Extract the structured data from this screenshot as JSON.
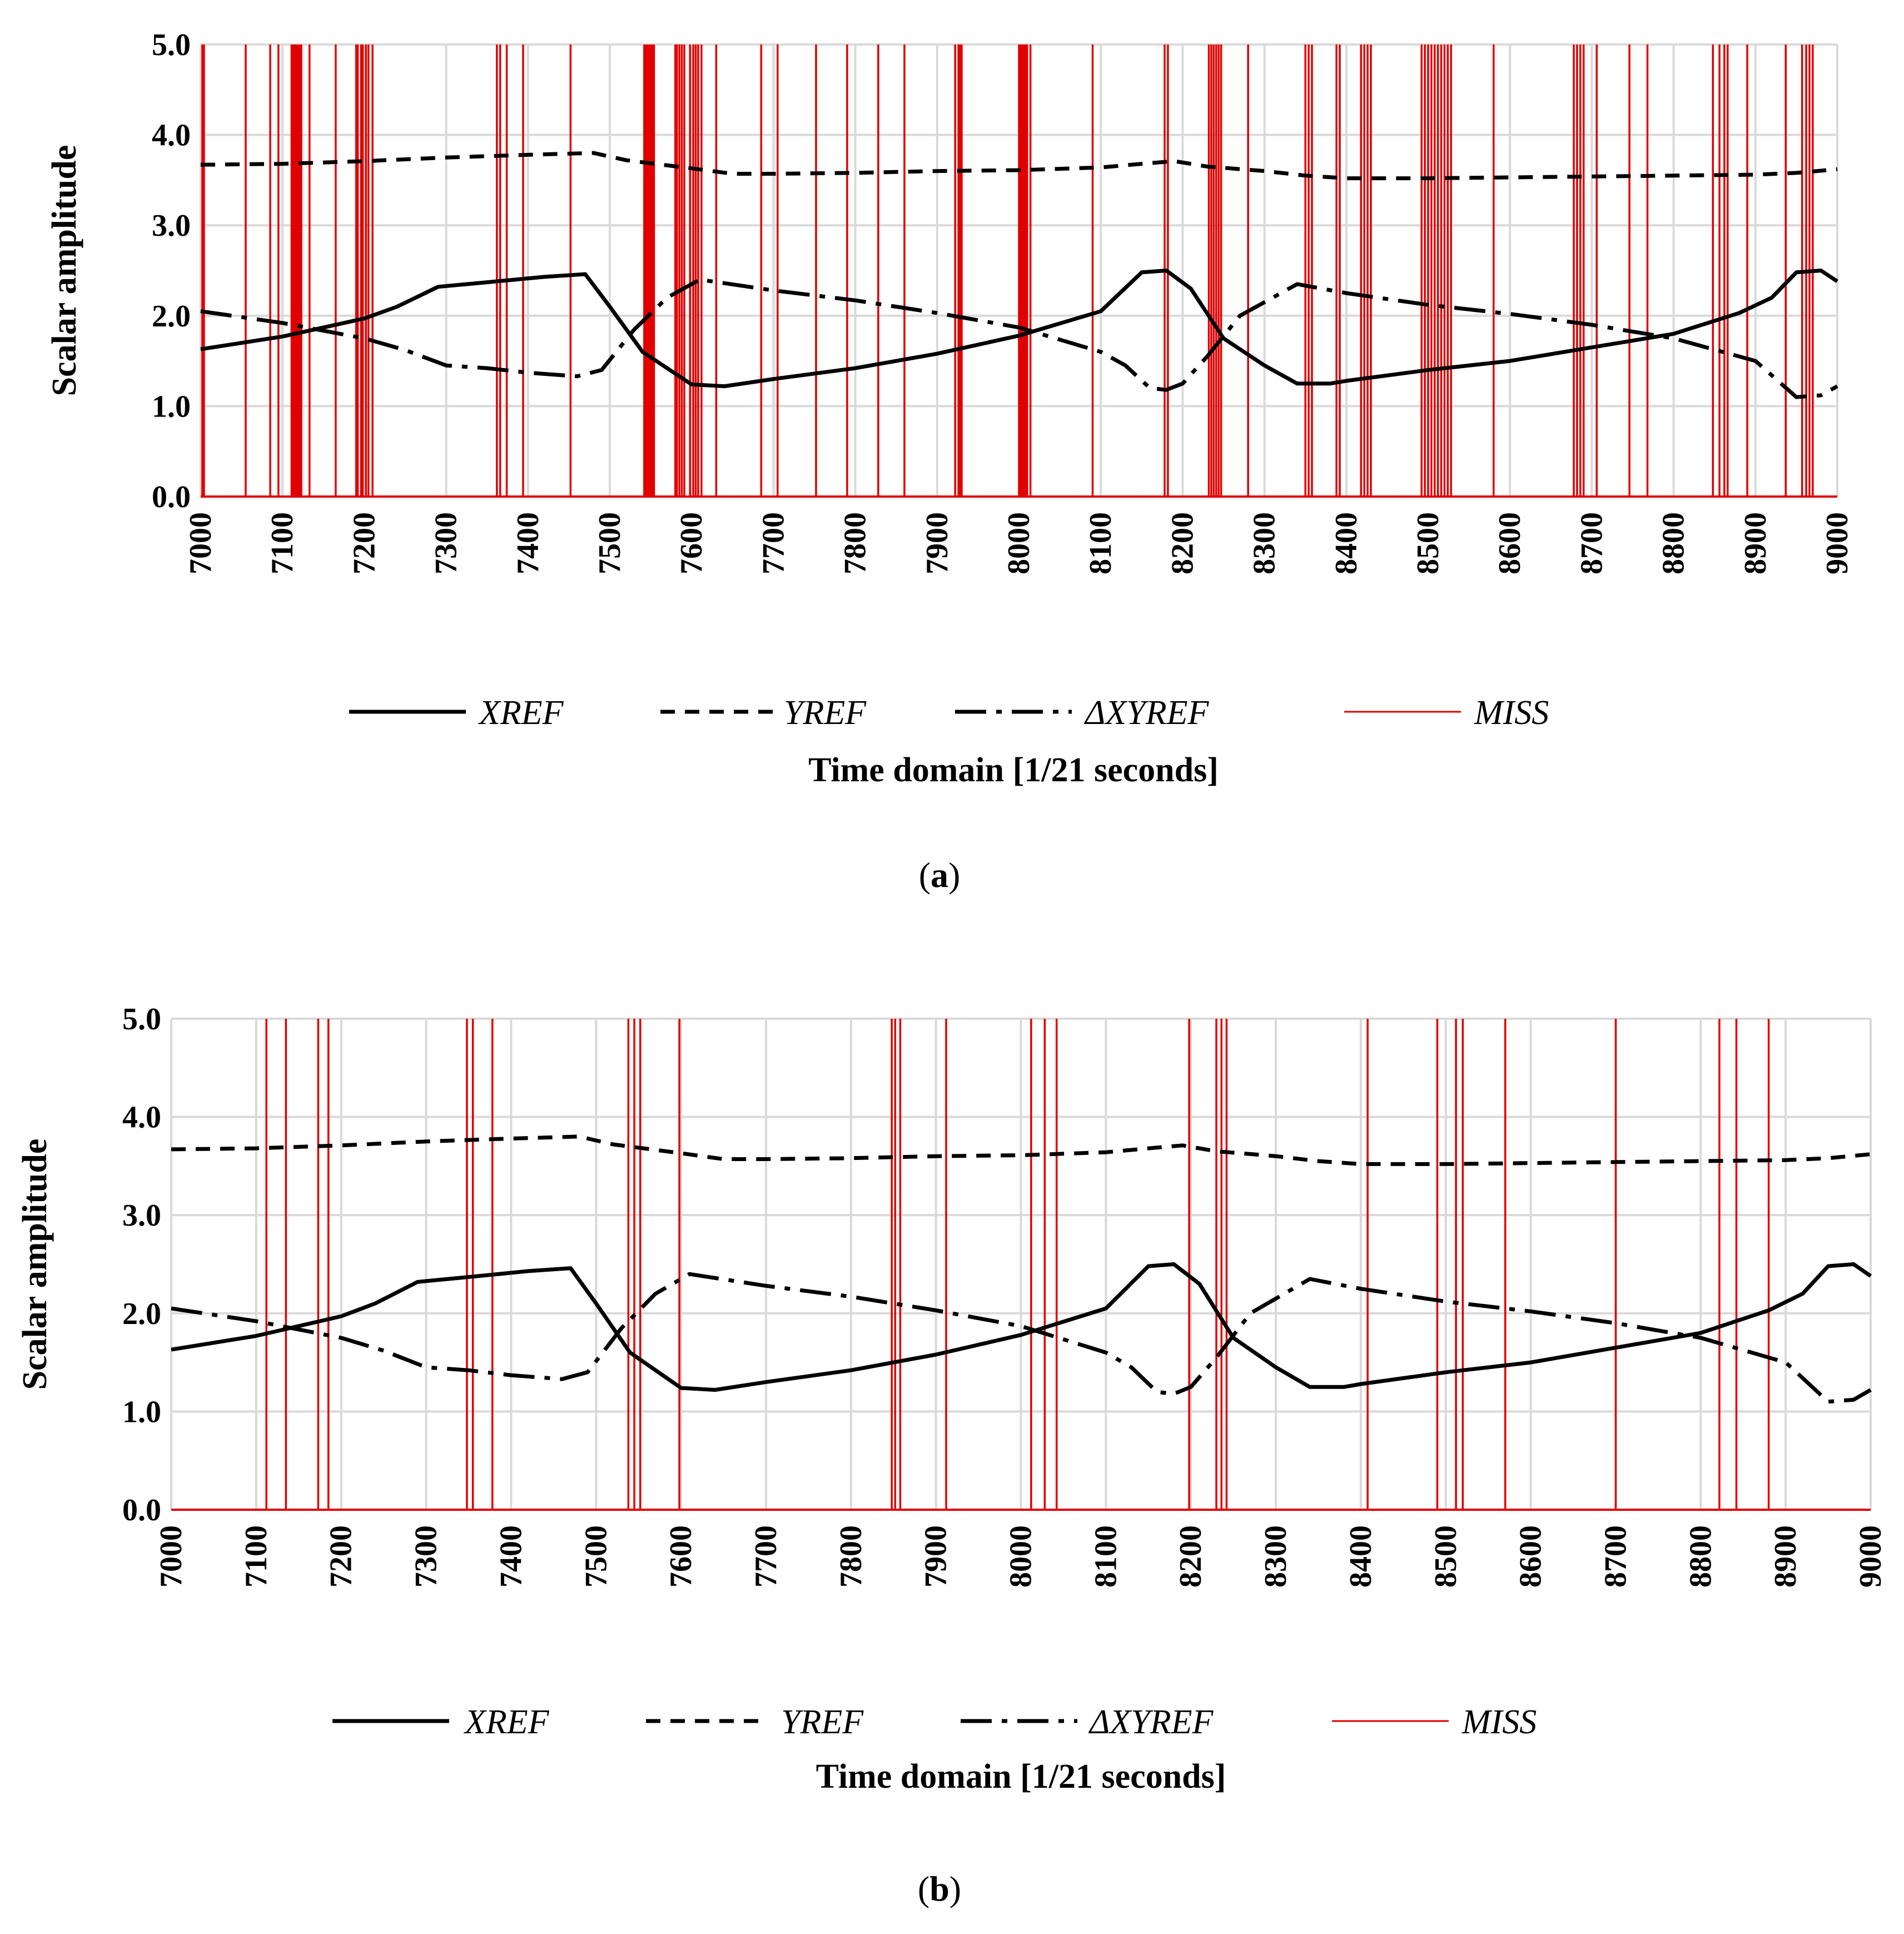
{
  "figure": {
    "panel_labels": [
      {
        "open": "(",
        "letter": "a",
        "close": ")"
      },
      {
        "open": "(",
        "letter": "b",
        "close": ")"
      }
    ]
  },
  "colors": {
    "xref": "#000000",
    "yref": "#000000",
    "dxyref": "#000000",
    "miss": "#e00000",
    "grid": "#d9d9d9"
  },
  "chart_data": [
    {
      "type": "line",
      "panel": "a",
      "xlabel": "Time domain [1/21 seconds]",
      "ylabel": "Scalar amplitude",
      "xlim": [
        7000,
        9000
      ],
      "ylim": [
        0,
        5
      ],
      "xticks": [
        "7000",
        "7100",
        "7200",
        "7300",
        "7400",
        "7500",
        "7600",
        "7700",
        "7800",
        "7900",
        "8000",
        "8100",
        "8200",
        "8300",
        "8400",
        "8500",
        "8600",
        "8700",
        "8800",
        "8900",
        "9000"
      ],
      "yticks": [
        "0.0",
        "1.0",
        "2.0",
        "3.0",
        "4.0",
        "5.0"
      ],
      "grid": true,
      "legend_position": "bottom",
      "series": [
        {
          "name": "XREF",
          "style": "solid",
          "points": [
            [
              7000,
              1.63
            ],
            [
              7100,
              1.77
            ],
            [
              7200,
              1.97
            ],
            [
              7240,
              2.1
            ],
            [
              7290,
              2.32
            ],
            [
              7350,
              2.37
            ],
            [
              7420,
              2.43
            ],
            [
              7470,
              2.46
            ],
            [
              7500,
              2.1
            ],
            [
              7540,
              1.6
            ],
            [
              7600,
              1.24
            ],
            [
              7640,
              1.22
            ],
            [
              7700,
              1.3
            ],
            [
              7800,
              1.42
            ],
            [
              7900,
              1.58
            ],
            [
              8000,
              1.78
            ],
            [
              8100,
              2.05
            ],
            [
              8150,
              2.48
            ],
            [
              8180,
              2.5
            ],
            [
              8210,
              2.3
            ],
            [
              8250,
              1.75
            ],
            [
              8300,
              1.45
            ],
            [
              8340,
              1.25
            ],
            [
              8380,
              1.25
            ],
            [
              8400,
              1.28
            ],
            [
              8500,
              1.4
            ],
            [
              8600,
              1.5
            ],
            [
              8700,
              1.65
            ],
            [
              8800,
              1.8
            ],
            [
              8880,
              2.03
            ],
            [
              8920,
              2.2
            ],
            [
              8950,
              2.48
            ],
            [
              8980,
              2.5
            ],
            [
              9000,
              2.38
            ]
          ]
        },
        {
          "name": "YREF",
          "style": "dashed",
          "points": [
            [
              7000,
              3.67
            ],
            [
              7100,
              3.68
            ],
            [
              7200,
              3.71
            ],
            [
              7300,
              3.75
            ],
            [
              7400,
              3.78
            ],
            [
              7480,
              3.8
            ],
            [
              7520,
              3.72
            ],
            [
              7600,
              3.63
            ],
            [
              7650,
              3.57
            ],
            [
              7700,
              3.57
            ],
            [
              7800,
              3.58
            ],
            [
              7900,
              3.6
            ],
            [
              8000,
              3.61
            ],
            [
              8100,
              3.64
            ],
            [
              8150,
              3.68
            ],
            [
              8190,
              3.71
            ],
            [
              8230,
              3.65
            ],
            [
              8300,
              3.6
            ],
            [
              8350,
              3.55
            ],
            [
              8400,
              3.52
            ],
            [
              8500,
              3.52
            ],
            [
              8600,
              3.53
            ],
            [
              8700,
              3.54
            ],
            [
              8800,
              3.55
            ],
            [
              8900,
              3.56
            ],
            [
              8950,
              3.58
            ],
            [
              9000,
              3.62
            ]
          ]
        },
        {
          "name": "ΔXYREF",
          "style": "dashdot",
          "points": [
            [
              7000,
              2.05
            ],
            [
              7100,
              1.92
            ],
            [
              7200,
              1.75
            ],
            [
              7250,
              1.62
            ],
            [
              7300,
              1.45
            ],
            [
              7350,
              1.42
            ],
            [
              7400,
              1.37
            ],
            [
              7460,
              1.33
            ],
            [
              7490,
              1.4
            ],
            [
              7530,
              1.85
            ],
            [
              7570,
              2.2
            ],
            [
              7610,
              2.4
            ],
            [
              7700,
              2.28
            ],
            [
              7800,
              2.17
            ],
            [
              7900,
              2.03
            ],
            [
              8000,
              1.87
            ],
            [
              8100,
              1.6
            ],
            [
              8130,
              1.45
            ],
            [
              8160,
              1.2
            ],
            [
              8180,
              1.18
            ],
            [
              8200,
              1.25
            ],
            [
              8230,
              1.55
            ],
            [
              8270,
              2.0
            ],
            [
              8300,
              2.15
            ],
            [
              8340,
              2.35
            ],
            [
              8400,
              2.25
            ],
            [
              8500,
              2.12
            ],
            [
              8600,
              2.02
            ],
            [
              8700,
              1.9
            ],
            [
              8800,
              1.75
            ],
            [
              8900,
              1.5
            ],
            [
              8950,
              1.1
            ],
            [
              8980,
              1.12
            ],
            [
              9000,
              1.22
            ]
          ]
        },
        {
          "name": "MISS",
          "style": "spike",
          "value": 5.0,
          "x": [
            7002,
            7004,
            7055,
            7085,
            7095,
            7111,
            7113,
            7115,
            7117,
            7119,
            7121,
            7123,
            7133,
            7165,
            7190,
            7192,
            7196,
            7198,
            7202,
            7205,
            7210,
            7362,
            7366,
            7374,
            7394,
            7452,
            7542,
            7544,
            7546,
            7548,
            7550,
            7552,
            7554,
            7580,
            7582,
            7585,
            7588,
            7591,
            7598,
            7602,
            7605,
            7608,
            7612,
            7630,
            7685,
            7705,
            7752,
            7790,
            7828,
            7860,
            7922,
            7926,
            7928,
            7930,
            8000,
            8002,
            8004,
            8006,
            8008,
            8010,
            8014,
            8090,
            8178,
            8182,
            8232,
            8235,
            8238,
            8241,
            8244,
            8247,
            8280,
            8350,
            8354,
            8358,
            8388,
            8392,
            8418,
            8422,
            8426,
            8430,
            8492,
            8496,
            8500,
            8504,
            8508,
            8512,
            8516,
            8520,
            8524,
            8528,
            8580,
            8678,
            8682,
            8686,
            8690,
            8706,
            8746,
            8768,
            8848,
            8856,
            8862,
            8866,
            8890,
            8937,
            8957,
            8962,
            8966,
            8970
          ]
        }
      ]
    },
    {
      "type": "line",
      "panel": "b",
      "xlabel": "Time domain [1/21 seconds]",
      "ylabel": "Scalar amplitude",
      "xlim": [
        7000,
        9000
      ],
      "ylim": [
        0,
        5
      ],
      "xticks": [
        "7000",
        "7100",
        "7200",
        "7300",
        "7400",
        "7500",
        "7600",
        "7700",
        "7800",
        "7900",
        "8000",
        "8100",
        "8200",
        "8300",
        "8400",
        "8500",
        "8600",
        "8700",
        "8800",
        "8900",
        "9000"
      ],
      "yticks": [
        "0.0",
        "1.0",
        "2.0",
        "3.0",
        "4.0",
        "5.0"
      ],
      "grid": true,
      "legend_position": "bottom",
      "series": [
        {
          "name": "XREF",
          "style": "solid",
          "points": [
            [
              7000,
              1.63
            ],
            [
              7100,
              1.77
            ],
            [
              7200,
              1.97
            ],
            [
              7240,
              2.1
            ],
            [
              7290,
              2.32
            ],
            [
              7350,
              2.37
            ],
            [
              7420,
              2.43
            ],
            [
              7470,
              2.46
            ],
            [
              7500,
              2.1
            ],
            [
              7540,
              1.6
            ],
            [
              7600,
              1.24
            ],
            [
              7640,
              1.22
            ],
            [
              7700,
              1.3
            ],
            [
              7800,
              1.42
            ],
            [
              7900,
              1.58
            ],
            [
              8000,
              1.78
            ],
            [
              8100,
              2.05
            ],
            [
              8150,
              2.48
            ],
            [
              8180,
              2.5
            ],
            [
              8210,
              2.3
            ],
            [
              8250,
              1.75
            ],
            [
              8300,
              1.45
            ],
            [
              8340,
              1.25
            ],
            [
              8380,
              1.25
            ],
            [
              8400,
              1.28
            ],
            [
              8500,
              1.4
            ],
            [
              8600,
              1.5
            ],
            [
              8700,
              1.65
            ],
            [
              8800,
              1.8
            ],
            [
              8880,
              2.03
            ],
            [
              8920,
              2.2
            ],
            [
              8950,
              2.48
            ],
            [
              8980,
              2.5
            ],
            [
              9000,
              2.38
            ]
          ]
        },
        {
          "name": "YREF",
          "style": "dashed",
          "points": [
            [
              7000,
              3.67
            ],
            [
              7100,
              3.68
            ],
            [
              7200,
              3.71
            ],
            [
              7300,
              3.75
            ],
            [
              7400,
              3.78
            ],
            [
              7480,
              3.8
            ],
            [
              7520,
              3.72
            ],
            [
              7600,
              3.63
            ],
            [
              7650,
              3.57
            ],
            [
              7700,
              3.57
            ],
            [
              7800,
              3.58
            ],
            [
              7900,
              3.6
            ],
            [
              8000,
              3.61
            ],
            [
              8100,
              3.64
            ],
            [
              8150,
              3.68
            ],
            [
              8190,
              3.71
            ],
            [
              8230,
              3.65
            ],
            [
              8300,
              3.6
            ],
            [
              8350,
              3.55
            ],
            [
              8400,
              3.52
            ],
            [
              8500,
              3.52
            ],
            [
              8600,
              3.53
            ],
            [
              8700,
              3.54
            ],
            [
              8800,
              3.55
            ],
            [
              8900,
              3.56
            ],
            [
              8950,
              3.58
            ],
            [
              9000,
              3.62
            ]
          ]
        },
        {
          "name": "ΔXYREF",
          "style": "dashdot",
          "points": [
            [
              7000,
              2.05
            ],
            [
              7100,
              1.92
            ],
            [
              7200,
              1.75
            ],
            [
              7250,
              1.62
            ],
            [
              7300,
              1.45
            ],
            [
              7350,
              1.42
            ],
            [
              7400,
              1.37
            ],
            [
              7460,
              1.33
            ],
            [
              7490,
              1.4
            ],
            [
              7530,
              1.85
            ],
            [
              7570,
              2.2
            ],
            [
              7610,
              2.4
            ],
            [
              7700,
              2.28
            ],
            [
              7800,
              2.17
            ],
            [
              7900,
              2.03
            ],
            [
              8000,
              1.87
            ],
            [
              8100,
              1.6
            ],
            [
              8130,
              1.45
            ],
            [
              8160,
              1.2
            ],
            [
              8180,
              1.18
            ],
            [
              8200,
              1.25
            ],
            [
              8230,
              1.55
            ],
            [
              8270,
              2.0
            ],
            [
              8300,
              2.15
            ],
            [
              8340,
              2.35
            ],
            [
              8400,
              2.25
            ],
            [
              8500,
              2.12
            ],
            [
              8600,
              2.02
            ],
            [
              8700,
              1.9
            ],
            [
              8800,
              1.75
            ],
            [
              8900,
              1.5
            ],
            [
              8950,
              1.1
            ],
            [
              8980,
              1.12
            ],
            [
              9000,
              1.22
            ]
          ]
        },
        {
          "name": "MISS",
          "style": "spike",
          "value": 5.0,
          "x": [
            7112,
            7135,
            7173,
            7185,
            7348,
            7355,
            7378,
            7538,
            7545,
            7552,
            7598,
            7848,
            7852,
            7858,
            7912,
            8012,
            8028,
            8042,
            8198,
            8230,
            8236,
            8242,
            8408,
            8490,
            8512,
            8520,
            8570,
            8700,
            8822,
            8842,
            8880
          ]
        }
      ]
    }
  ]
}
